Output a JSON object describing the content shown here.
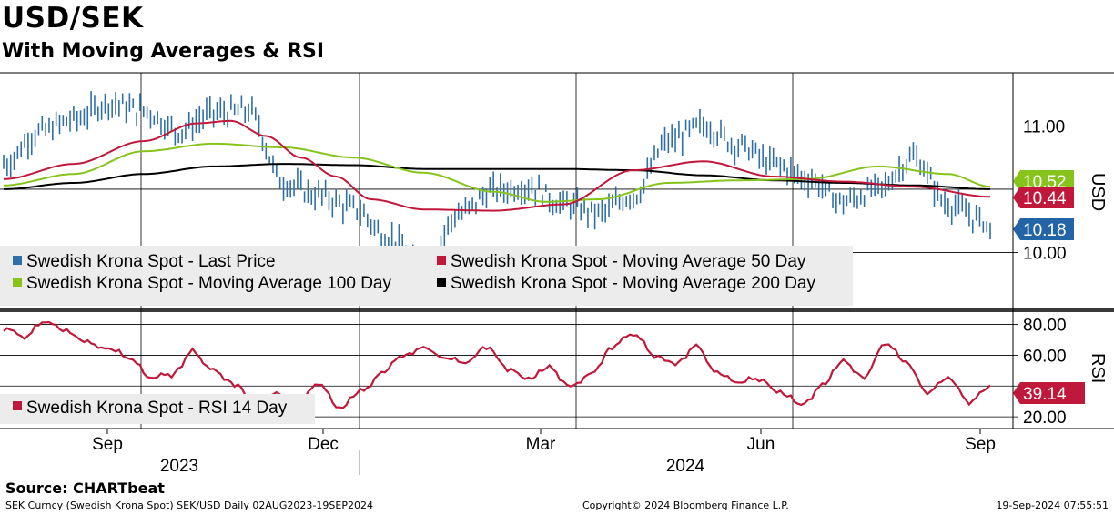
{
  "header": {
    "title": "USD/SEK",
    "subtitle": "With Moving Averages & RSI"
  },
  "footer": {
    "source": "Source: CHARTbeat",
    "ticker_info": "SEK Curncy (Swedish Krona Spot) SEK/USD  Daily 02AUG2023-19SEP2024",
    "copyright": "Copyright© 2024 Bloomberg Finance L.P.",
    "timestamp": "19-Sep-2024 07:55:51"
  },
  "colors": {
    "price": "#2f6fa8",
    "ma50": "#c0183a",
    "ma100": "#86c41c",
    "ma200": "#000000",
    "rsi": "#c0183a",
    "price_tag": "#2364a6",
    "legend_bg": "#ececec"
  },
  "chart_data": [
    {
      "type": "ohlc",
      "name": "price-panel",
      "ylim": [
        9.55,
        11.42
      ],
      "yticks": [
        10.0,
        11.0
      ],
      "ytick_labels": [
        "10.00",
        "11.00"
      ],
      "y_axis_label": "USD",
      "x_tick_labels": [
        "Sep",
        "Dec",
        "Mar",
        "Jun",
        "Sep"
      ],
      "year_labels": [
        "2023",
        "2024"
      ],
      "legend": [
        "Swedish Krona Spot - Last Price",
        "Swedish Krona Spot - Moving Average 50 Day",
        "Swedish Krona Spot - Moving Average 100 Day",
        "Swedish Krona Spot - Moving Average 200 Day"
      ],
      "value_tags": [
        {
          "series": "ma100",
          "value": 10.52,
          "label": "10.52"
        },
        {
          "series": "ma50",
          "value": 10.44,
          "label": "10.44"
        },
        {
          "series": "price",
          "value": 10.18,
          "label": "10.18"
        }
      ],
      "series": [
        {
          "name": "Swedish Krona Spot - Last Price",
          "key": "price",
          "x": [
            0,
            10,
            20,
            30,
            40,
            50,
            60,
            70,
            80,
            90,
            100,
            110,
            120,
            130,
            140,
            150,
            160,
            170,
            180,
            190,
            200,
            210,
            220,
            230,
            240,
            250,
            260,
            270,
            280,
            282
          ],
          "y": [
            10.7,
            10.95,
            11.05,
            11.18,
            11.12,
            10.96,
            11.1,
            11.12,
            10.55,
            10.45,
            10.35,
            10.12,
            9.88,
            10.3,
            10.49,
            10.52,
            10.38,
            10.31,
            10.45,
            10.88,
            11.0,
            10.85,
            10.7,
            10.58,
            10.4,
            10.5,
            10.75,
            10.38,
            10.25,
            10.18
          ]
        },
        {
          "name": "Swedish Krona Spot - Moving Average 50 Day",
          "key": "ma50",
          "x": [
            0,
            20,
            40,
            55,
            65,
            75,
            85,
            95,
            105,
            120,
            140,
            160,
            180,
            200,
            220,
            240,
            260,
            282
          ],
          "y": [
            10.58,
            10.7,
            10.88,
            11.02,
            11.04,
            10.92,
            10.75,
            10.6,
            10.42,
            10.34,
            10.33,
            10.38,
            10.65,
            10.72,
            10.6,
            10.56,
            10.52,
            10.44
          ]
        },
        {
          "name": "Swedish Krona Spot - Moving Average 100 Day",
          "key": "ma100",
          "x": [
            0,
            20,
            40,
            60,
            80,
            100,
            120,
            140,
            155,
            170,
            190,
            210,
            230,
            250,
            270,
            282
          ],
          "y": [
            10.53,
            10.62,
            10.8,
            10.86,
            10.83,
            10.75,
            10.63,
            10.48,
            10.4,
            10.42,
            10.55,
            10.57,
            10.58,
            10.68,
            10.62,
            10.52
          ]
        },
        {
          "name": "Swedish Krona Spot - Moving Average 200 Day",
          "key": "ma200",
          "x": [
            0,
            20,
            40,
            60,
            80,
            100,
            120,
            140,
            160,
            180,
            200,
            220,
            240,
            260,
            282
          ],
          "y": [
            10.5,
            10.55,
            10.62,
            10.68,
            10.7,
            10.69,
            10.66,
            10.66,
            10.66,
            10.65,
            10.61,
            10.57,
            10.55,
            10.53,
            10.5
          ]
        }
      ]
    },
    {
      "type": "line",
      "name": "rsi-panel",
      "ylim": [
        13,
        88
      ],
      "yticks": [
        20,
        40,
        60,
        80
      ],
      "ytick_labels": [
        "20.00",
        "",
        "60.00",
        "80.00"
      ],
      "y_axis_label": "RSI",
      "legend": [
        "Swedish Krona Spot - RSI 14 Day"
      ],
      "value_tags": [
        {
          "series": "rsi",
          "value": 39.14,
          "label": "39.14"
        }
      ],
      "series": [
        {
          "name": "Swedish Krona Spot - RSI 14 Day",
          "key": "rsi",
          "x": [
            0,
            6,
            12,
            18,
            24,
            30,
            36,
            42,
            48,
            54,
            60,
            66,
            72,
            78,
            84,
            90,
            96,
            102,
            108,
            114,
            120,
            126,
            132,
            138,
            144,
            150,
            156,
            162,
            168,
            174,
            180,
            186,
            192,
            198,
            204,
            210,
            216,
            222,
            228,
            234,
            240,
            246,
            252,
            258,
            264,
            270,
            276,
            282
          ],
          "y": [
            78,
            72,
            82,
            75,
            68,
            64,
            58,
            45,
            48,
            62,
            50,
            42,
            30,
            35,
            28,
            42,
            25,
            36,
            48,
            60,
            65,
            58,
            55,
            66,
            52,
            44,
            52,
            40,
            48,
            66,
            74,
            60,
            55,
            66,
            48,
            42,
            45,
            35,
            28,
            40,
            56,
            46,
            68,
            55,
            36,
            45,
            30,
            39.14
          ]
        }
      ]
    }
  ]
}
